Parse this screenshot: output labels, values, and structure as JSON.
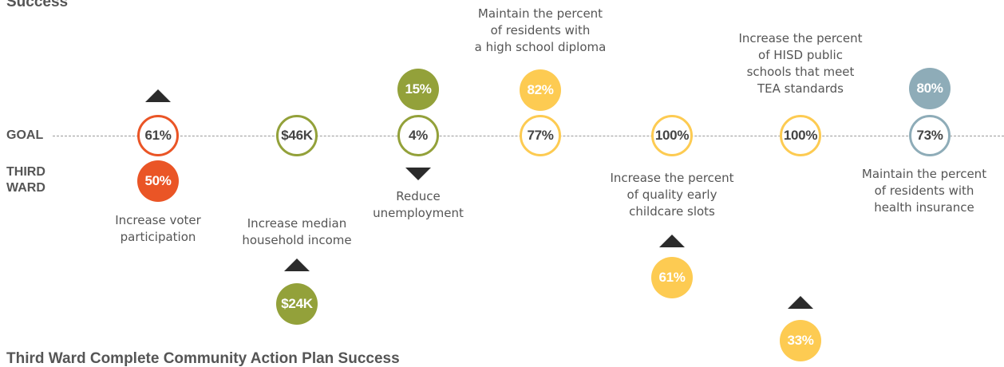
{
  "headings": {
    "top": "Success",
    "bottom": "Third Ward Complete Community Action Plan Success"
  },
  "labels": {
    "goal": "GOAL",
    "ward_line1": "THIRD",
    "ward_line2": "WARD"
  },
  "colors": {
    "orange": "#ea5526",
    "green": "#93a13a",
    "yellow": "#fdcb52",
    "blue": "#8eacb8",
    "arrow": "#2b2b2b"
  },
  "indicators": [
    {
      "id": "voter",
      "goal": "61%",
      "ward": "50%",
      "caption": [
        "Increase voter",
        "participation"
      ],
      "direction": "increase"
    },
    {
      "id": "income",
      "goal": "$46K",
      "ward": "$24K",
      "caption": [
        "Increase median",
        "household income"
      ],
      "direction": "increase"
    },
    {
      "id": "unemployment",
      "goal": "4%",
      "ward": "15%",
      "caption": [
        "Reduce",
        "unemployment"
      ],
      "direction": "decrease"
    },
    {
      "id": "diploma",
      "goal": "77%",
      "ward": "82%",
      "caption": [
        "Maintain the percent",
        "of residents with",
        "a high school diploma"
      ],
      "direction": "maintain"
    },
    {
      "id": "childcare",
      "goal": "100%",
      "ward": "61%",
      "caption": [
        "Increase the percent",
        "of quality early",
        "childcare slots"
      ],
      "direction": "increase"
    },
    {
      "id": "schools",
      "goal": "100%",
      "ward": "33%",
      "caption": [
        "Increase the percent",
        "of HISD public",
        "schools that meet",
        "TEA standards"
      ],
      "direction": "increase"
    },
    {
      "id": "insurance",
      "goal": "73%",
      "ward": "80%",
      "caption": [
        "Maintain the percent",
        "of residents with",
        "health insurance"
      ],
      "direction": "maintain"
    }
  ]
}
